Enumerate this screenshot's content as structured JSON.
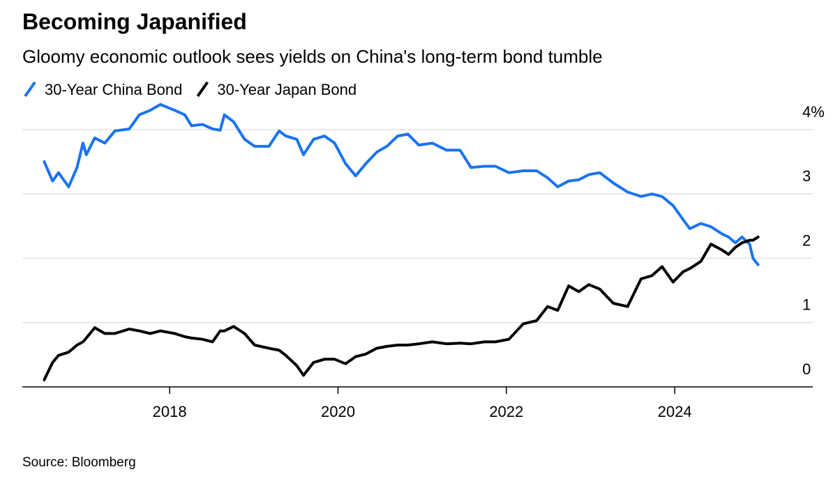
{
  "chart_data": {
    "type": "line",
    "title": "Becoming Japanified",
    "subtitle": "Gloomy economic outlook sees yields on China's long-term bond tumble",
    "source": "Source: Bloomberg",
    "x": [
      2016.51,
      2016.61,
      2016.68,
      2016.8,
      2016.9,
      2016.97,
      2017.01,
      2017.11,
      2017.23,
      2017.35,
      2017.52,
      2017.64,
      2017.77,
      2017.89,
      2018.06,
      2018.18,
      2018.26,
      2018.39,
      2018.51,
      2018.6,
      2018.65,
      2018.76,
      2018.89,
      2019.01,
      2019.18,
      2019.3,
      2019.38,
      2019.51,
      2019.59,
      2019.71,
      2019.84,
      2019.96,
      2020.09,
      2020.21,
      2020.33,
      2020.46,
      2020.58,
      2020.71,
      2020.83,
      2020.96,
      2021.12,
      2021.29,
      2021.45,
      2021.58,
      2021.74,
      2021.87,
      2022.03,
      2022.2,
      2022.36,
      2022.49,
      2022.61,
      2022.74,
      2022.86,
      2022.98,
      2023.11,
      2023.27,
      2023.44,
      2023.6,
      2023.73,
      2023.85,
      2023.98,
      2024.1,
      2024.18,
      2024.31,
      2024.43,
      2024.56,
      2024.64,
      2024.72,
      2024.8,
      2024.89,
      2024.93,
      2024.99
    ],
    "series": [
      {
        "name": "30-Year China Bond",
        "color": "#1a73f0",
        "values": [
          3.5,
          3.2,
          3.33,
          3.11,
          3.41,
          3.79,
          3.61,
          3.87,
          3.79,
          3.98,
          4.01,
          4.23,
          4.3,
          4.39,
          4.3,
          4.23,
          4.06,
          4.08,
          4.01,
          3.99,
          4.23,
          4.12,
          3.85,
          3.74,
          3.74,
          3.98,
          3.9,
          3.85,
          3.61,
          3.85,
          3.9,
          3.79,
          3.47,
          3.28,
          3.47,
          3.65,
          3.74,
          3.9,
          3.93,
          3.76,
          3.79,
          3.68,
          3.68,
          3.41,
          3.43,
          3.43,
          3.33,
          3.36,
          3.36,
          3.25,
          3.11,
          3.2,
          3.22,
          3.3,
          3.33,
          3.17,
          3.03,
          2.96,
          3.0,
          2.96,
          2.82,
          2.6,
          2.46,
          2.54,
          2.49,
          2.38,
          2.33,
          2.24,
          2.33,
          2.22,
          2.0,
          1.9
        ]
      },
      {
        "name": "30-Year Japan Bond",
        "color": "#000000",
        "values": [
          0.11,
          0.38,
          0.49,
          0.54,
          0.65,
          0.7,
          0.76,
          0.92,
          0.83,
          0.83,
          0.9,
          0.87,
          0.83,
          0.87,
          0.83,
          0.78,
          0.76,
          0.74,
          0.7,
          0.87,
          0.87,
          0.94,
          0.83,
          0.65,
          0.6,
          0.57,
          0.49,
          0.33,
          0.18,
          0.38,
          0.43,
          0.43,
          0.36,
          0.47,
          0.51,
          0.6,
          0.63,
          0.65,
          0.65,
          0.67,
          0.7,
          0.67,
          0.68,
          0.67,
          0.7,
          0.7,
          0.74,
          0.98,
          1.03,
          1.25,
          1.19,
          1.57,
          1.48,
          1.59,
          1.52,
          1.3,
          1.25,
          1.68,
          1.73,
          1.87,
          1.63,
          1.79,
          1.84,
          1.95,
          2.22,
          2.13,
          2.06,
          2.17,
          2.24,
          2.28,
          2.28,
          2.33
        ]
      }
    ],
    "xlim": [
      2016.25,
      2025.64
    ],
    "xticks": [
      2018,
      2020,
      2022,
      2024
    ],
    "ylim": [
      0,
      4.4
    ],
    "yticks": [
      0,
      1,
      2,
      3,
      {
        "value": 4,
        "label": "4%"
      }
    ],
    "grid": true
  }
}
